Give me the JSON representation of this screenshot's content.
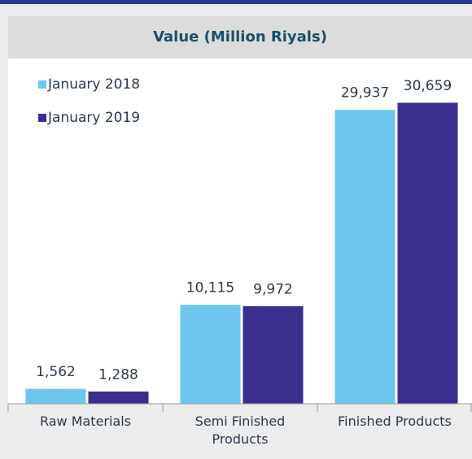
{
  "chart_data": {
    "type": "bar",
    "title": "Value (Million Riyals)",
    "categories": [
      "Raw Materials",
      "Semi Finished Products",
      "Finished Products"
    ],
    "series": [
      {
        "name": "January 2018",
        "color": "#6ec6ef",
        "values": [
          1562,
          10115,
          29937
        ],
        "value_labels": [
          "1,562",
          "10,115",
          "29,937"
        ]
      },
      {
        "name": "January 2019",
        "color": "#3a2e8e",
        "values": [
          1288,
          9972,
          30659
        ],
        "value_labels": [
          "1,288",
          "9,972",
          "30,659"
        ]
      }
    ],
    "legend": "upper left"
  }
}
